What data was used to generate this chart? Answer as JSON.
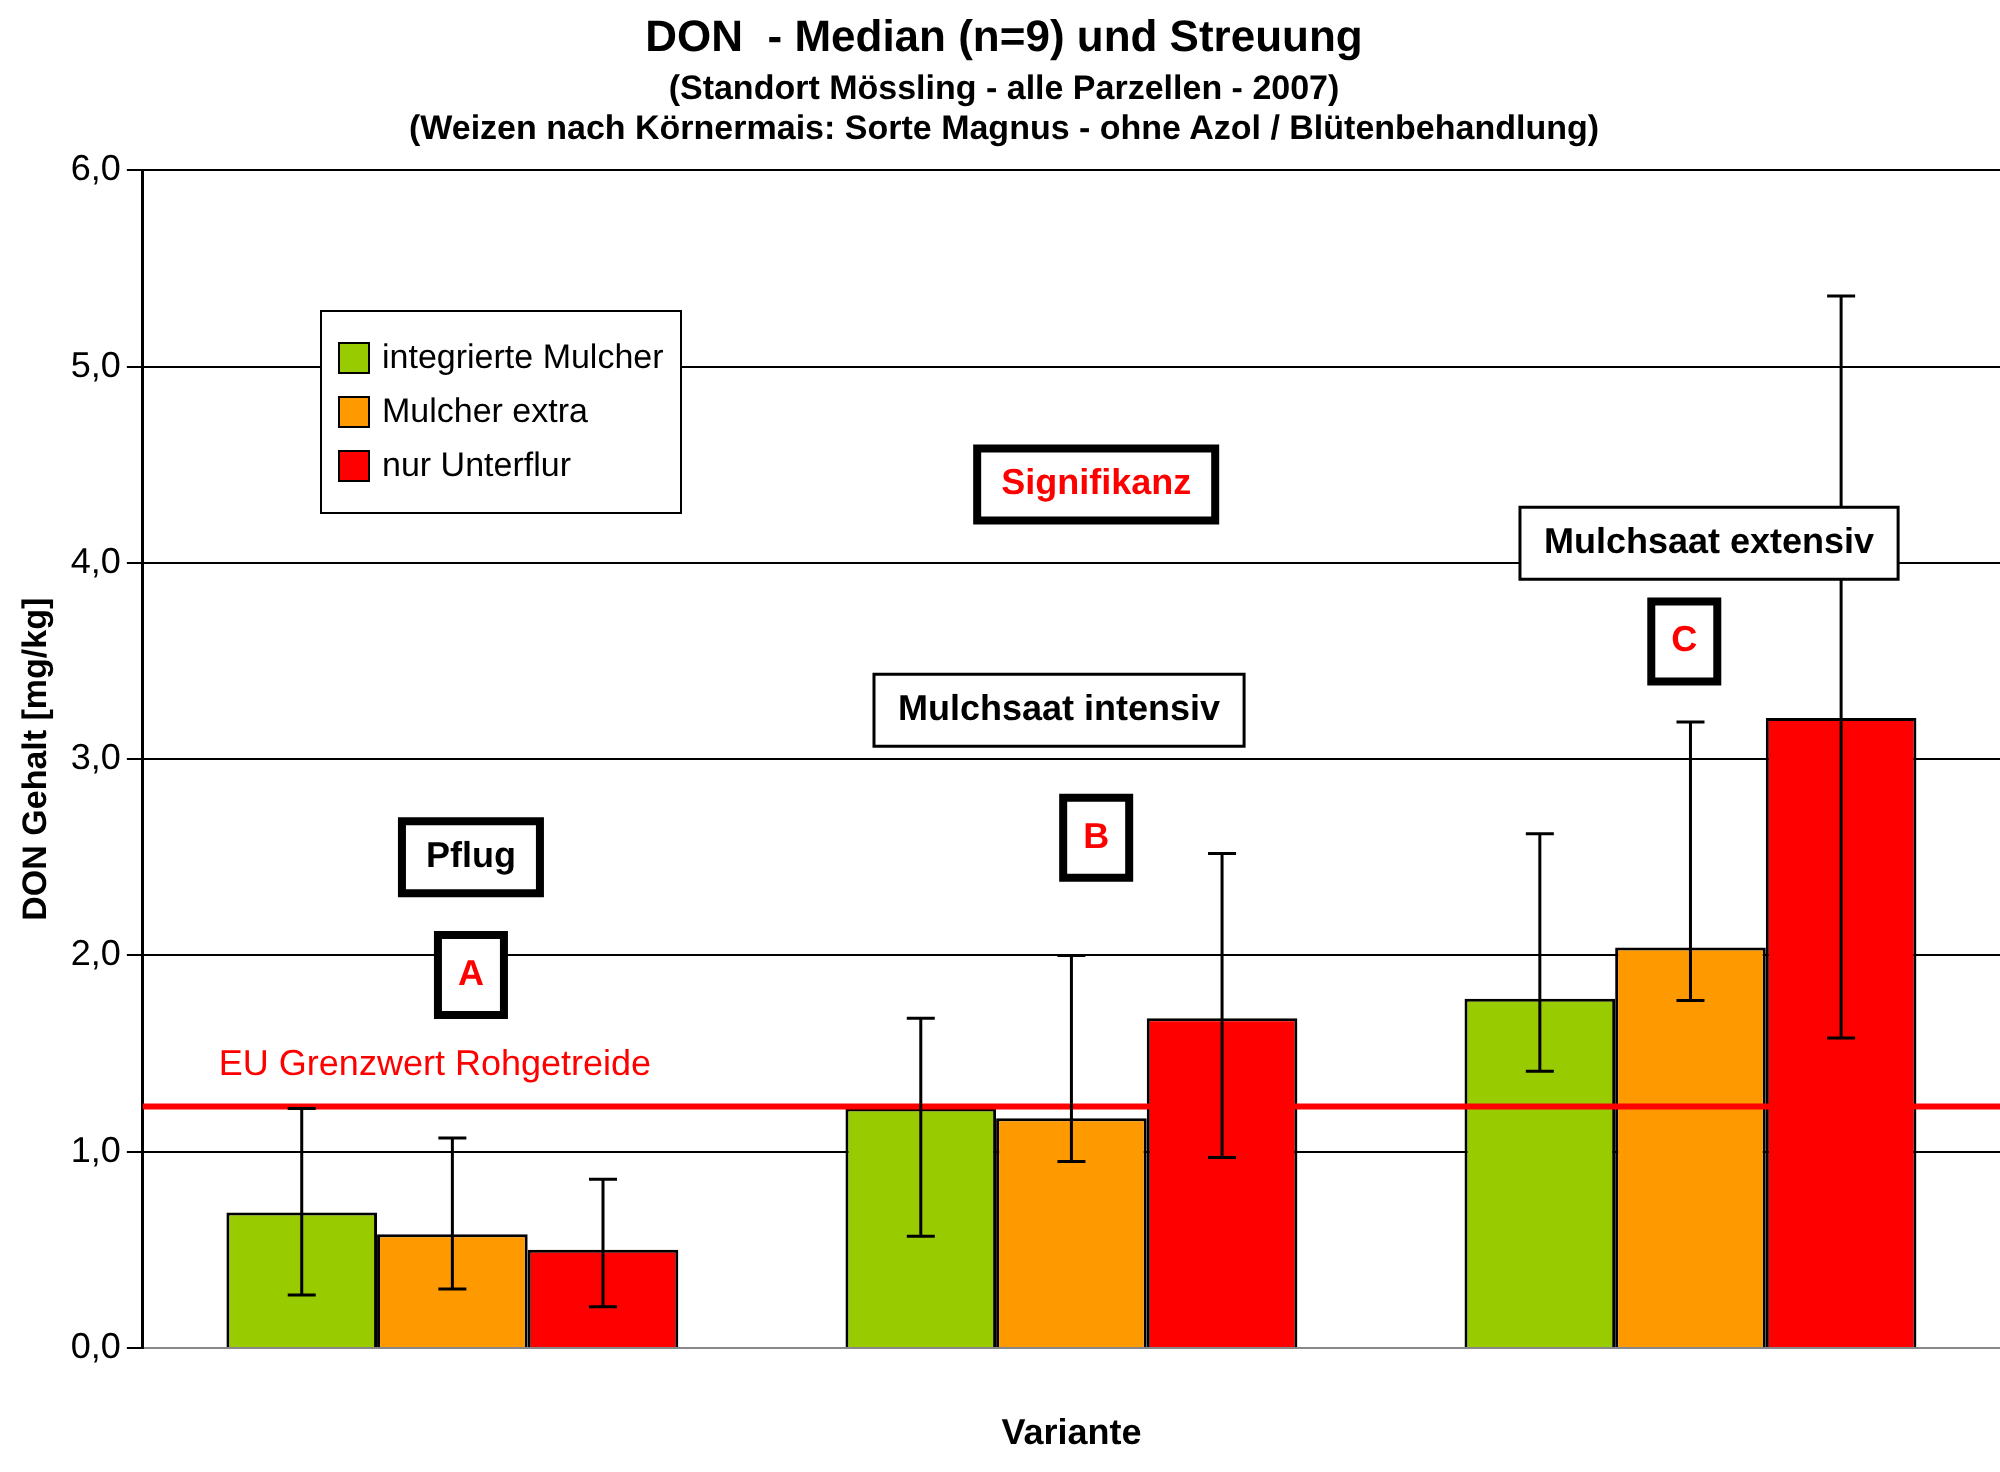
{
  "chart_data": {
    "type": "bar",
    "title": "DON  - Median (n=9) und Streuung",
    "subtitle": "(Standort Mössling - alle Parzellen - 2007)\n(Weizen nach Körnermais: Sorte Magnus - ohne Azol / Blütenbehandlung)",
    "xlabel": "Variante",
    "ylabel": "DON Gehalt [mg/kg]",
    "categories": [
      null,
      null,
      null
    ],
    "series": [
      {
        "name": "integrierte Mulcher",
        "color": "#99cc00",
        "values": [
          0.69,
          1.22,
          1.78
        ],
        "errors": [
          [
            0.27,
            1.22
          ],
          [
            0.57,
            1.68
          ],
          [
            1.41,
            2.62
          ]
        ]
      },
      {
        "name": "Mulcher extra",
        "color": "#ff9900",
        "values": [
          0.58,
          1.17,
          2.04
        ],
        "errors": [
          [
            0.3,
            1.07
          ],
          [
            0.95,
            2.0
          ],
          [
            1.77,
            3.19
          ]
        ]
      },
      {
        "name": "nur Unterflur",
        "color": "#ff0000",
        "values": [
          0.5,
          1.68,
          3.21
        ],
        "errors": [
          [
            0.21,
            0.86
          ],
          [
            0.97,
            2.52
          ],
          [
            1.58,
            5.36
          ]
        ]
      }
    ],
    "ylim": [
      0,
      6
    ],
    "yticks": [
      {
        "value": 0,
        "label": "0,0"
      },
      {
        "value": 1,
        "label": "1,0"
      },
      {
        "value": 2,
        "label": "2,0"
      },
      {
        "value": 3,
        "label": "3,0"
      },
      {
        "value": 4,
        "label": "4,0"
      },
      {
        "value": 5,
        "label": "5,0"
      },
      {
        "value": 6,
        "label": "6,0"
      }
    ],
    "grid": "y",
    "legend": "top left",
    "ref_lines": [
      {
        "axis": "y",
        "value": 1.23,
        "label": "EU Grenzwert Rohgetreide",
        "color": "#ff0000"
      }
    ],
    "annotations": [
      "Pflug",
      "A",
      "Mulchsaat intensiv",
      "B",
      "Mulchsaat extensiv",
      "C",
      "Signifikanz"
    ]
  }
}
